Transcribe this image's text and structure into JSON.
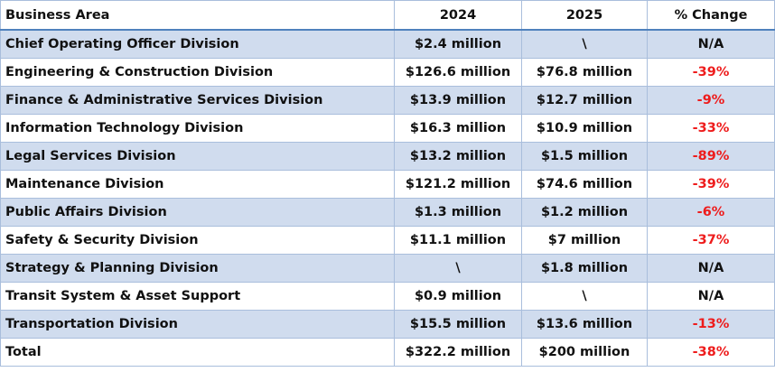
{
  "table": {
    "headers": [
      "Business Area",
      "2024",
      "2025",
      "% Change"
    ],
    "rows": [
      {
        "area": "Chief  Operating Officer Division",
        "y2024": "$2.4 million",
        "y2025": "\\",
        "change": "N/A",
        "negative": false
      },
      {
        "area": "Engineering & Construction Division",
        "y2024": "$126.6 million",
        "y2025": "$76.8 million",
        "change": "-39%",
        "negative": true
      },
      {
        "area": "Finance & Administrative Services Division",
        "y2024": "$13.9 million",
        "y2025": "$12.7 million",
        "change": "-9%",
        "negative": true
      },
      {
        "area": "Information Technology Division",
        "y2024": "$16.3 million",
        "y2025": "$10.9 million",
        "change": "-33%",
        "negative": true
      },
      {
        "area": "Legal Services Division",
        "y2024": "$13.2 million",
        "y2025": "$1.5 million",
        "change": "-89%",
        "negative": true
      },
      {
        "area": "Maintenance Division",
        "y2024": "$121.2 million",
        "y2025": "$74.6 million",
        "change": "-39%",
        "negative": true
      },
      {
        "area": "Public Affairs Division",
        "y2024": "$1.3 million",
        "y2025": "$1.2 million",
        "change": "-6%",
        "negative": true
      },
      {
        "area": "Safety & Security Division",
        "y2024": "$11.1 million",
        "y2025": "$7 million",
        "change": "-37%",
        "negative": true
      },
      {
        "area": "Strategy & Planning Division",
        "y2024": "\\",
        "y2025": "$1.8 million",
        "change": "N/A",
        "negative": false
      },
      {
        "area": "Transit System & Asset Support",
        "y2024": "$0.9 million",
        "y2025": "\\",
        "change": "N/A",
        "negative": false
      },
      {
        "area": "Transportation Division",
        "y2024": "$15.5 million",
        "y2025": "$13.6 million",
        "change": "-13%",
        "negative": true
      },
      {
        "area": "Total",
        "y2024": "$322.2 million",
        "y2025": "$200 million",
        "change": "-38%",
        "negative": true
      }
    ]
  },
  "colors": {
    "band_fill": "#d0dcee",
    "border": "#a9bedc",
    "header_rule": "#4f81bd",
    "negative_text": "#ee1c1c"
  }
}
